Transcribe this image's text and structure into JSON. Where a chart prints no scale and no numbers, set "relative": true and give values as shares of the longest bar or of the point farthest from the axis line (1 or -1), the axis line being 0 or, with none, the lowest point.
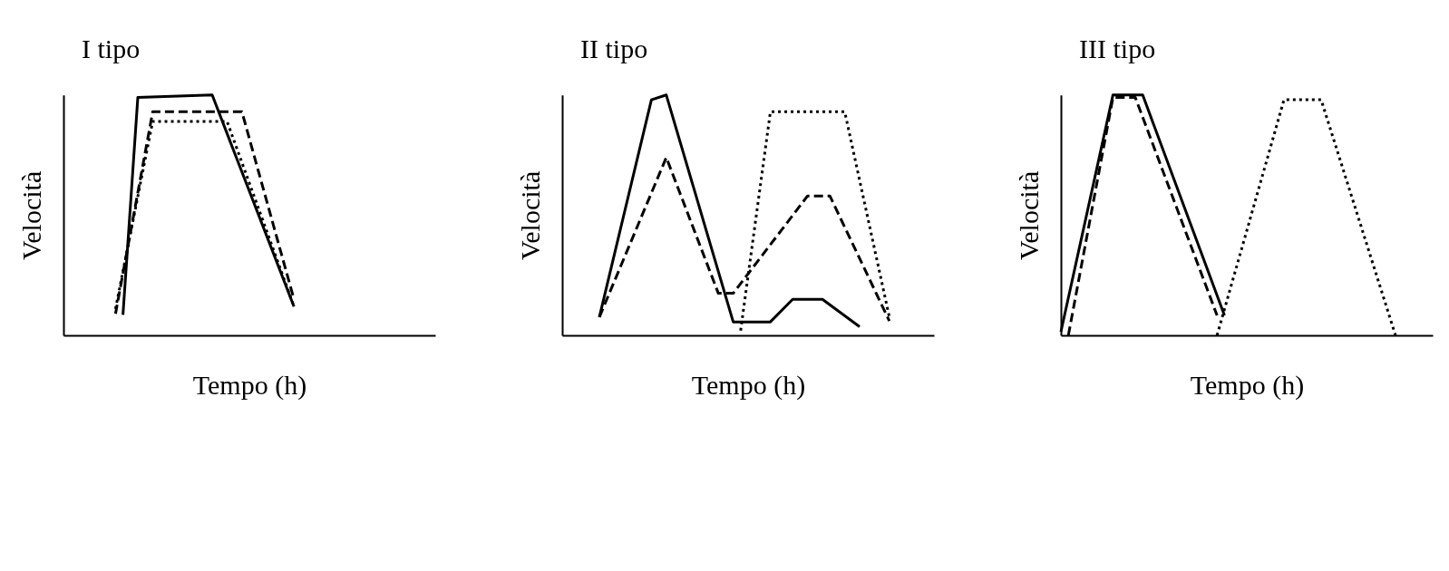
{
  "chart_data": [
    {
      "type": "line",
      "title": "I tipo",
      "xlabel": "Tempo (h)",
      "ylabel": "Velocità",
      "relative": true,
      "tick_labels": false,
      "grid": false,
      "legend": false,
      "marker": "none",
      "categories": [
        null,
        null,
        null,
        null,
        null,
        null,
        null,
        null,
        null,
        null,
        null,
        null,
        null,
        null,
        null,
        null,
        null,
        null,
        null,
        null,
        null,
        null,
        null,
        null,
        null,
        null,
        null,
        null,
        null,
        null,
        null,
        null,
        null,
        null,
        null,
        null,
        null,
        null,
        null,
        null,
        null,
        null,
        null,
        null,
        null,
        null,
        null,
        null,
        null,
        null,
        null
      ],
      "series": [
        {
          "color": "#000000",
          "line_style": "solid",
          "values": [
            null,
            null,
            null,
            null,
            null,
            null,
            null,
            null,
            0.085,
            null,
            0.99,
            null,
            null,
            null,
            null,
            null,
            null,
            null,
            null,
            null,
            1.0,
            null,
            null,
            null,
            null,
            null,
            null,
            null,
            null,
            null,
            null,
            0.12,
            null,
            null,
            null,
            null,
            null,
            null,
            null,
            null,
            null,
            null,
            null,
            null,
            null,
            null,
            null,
            null,
            null,
            null,
            null
          ]
        },
        {
          "color": "#000000",
          "line_style": "dashed",
          "values": [
            null,
            null,
            null,
            null,
            null,
            null,
            null,
            0.09,
            null,
            null,
            null,
            null,
            0.93,
            null,
            null,
            null,
            null,
            null,
            null,
            null,
            null,
            null,
            null,
            null,
            0.93,
            null,
            null,
            null,
            null,
            null,
            null,
            0.15,
            null,
            null,
            null,
            null,
            null,
            null,
            null,
            null,
            null,
            null,
            null,
            null,
            null,
            null,
            null,
            null,
            null,
            null,
            null
          ]
        },
        {
          "color": "#000000",
          "line_style": "dotted",
          "values": [
            null,
            null,
            null,
            null,
            null,
            null,
            null,
            0.11,
            null,
            null,
            null,
            null,
            0.89,
            null,
            null,
            null,
            null,
            null,
            null,
            null,
            null,
            null,
            0.89,
            null,
            null,
            null,
            null,
            null,
            null,
            null,
            null,
            0.12,
            null,
            null,
            null,
            null,
            null,
            null,
            null,
            null,
            null,
            null,
            null,
            null,
            null,
            null,
            null,
            null,
            null,
            null,
            null
          ]
        }
      ]
    },
    {
      "type": "line",
      "title": "II tipo",
      "xlabel": "Tempo (h)",
      "ylabel": "Velocità",
      "relative": true,
      "tick_labels": false,
      "grid": false,
      "legend": false,
      "marker": "none",
      "categories": [
        null,
        null,
        null,
        null,
        null,
        null,
        null,
        null,
        null,
        null,
        null,
        null,
        null,
        null,
        null,
        null,
        null,
        null,
        null,
        null,
        null,
        null,
        null,
        null,
        null,
        null,
        null,
        null,
        null,
        null,
        null,
        null,
        null,
        null,
        null,
        null,
        null,
        null,
        null,
        null,
        null,
        null,
        null,
        null,
        null,
        null,
        null,
        null,
        null,
        null,
        null
      ],
      "series": [
        {
          "color": "#000000",
          "line_style": "solid",
          "values": [
            null,
            null,
            null,
            null,
            null,
            0.076,
            null,
            null,
            null,
            null,
            null,
            null,
            0.98,
            null,
            1.0,
            null,
            null,
            null,
            null,
            null,
            null,
            null,
            null,
            0.056,
            null,
            null,
            null,
            null,
            0.056,
            null,
            null,
            0.15,
            null,
            null,
            null,
            0.15,
            null,
            null,
            null,
            null,
            0.036,
            null,
            null,
            null,
            null,
            null,
            null,
            null,
            null,
            null,
            null
          ]
        },
        {
          "color": "#000000",
          "line_style": "dashed",
          "values": [
            null,
            null,
            null,
            null,
            null,
            0.076,
            null,
            null,
            null,
            null,
            null,
            null,
            null,
            null,
            0.74,
            null,
            null,
            null,
            null,
            null,
            null,
            0.175,
            null,
            0.175,
            null,
            null,
            null,
            null,
            null,
            null,
            null,
            null,
            null,
            0.58,
            null,
            null,
            0.58,
            null,
            null,
            null,
            null,
            null,
            null,
            null,
            0.06,
            null,
            null,
            null,
            null,
            null,
            null
          ]
        },
        {
          "color": "#000000",
          "line_style": "dotted",
          "values": [
            null,
            null,
            null,
            null,
            null,
            null,
            null,
            null,
            null,
            null,
            null,
            null,
            null,
            null,
            null,
            null,
            null,
            null,
            null,
            null,
            null,
            null,
            null,
            null,
            0.02,
            null,
            null,
            null,
            0.93,
            null,
            null,
            null,
            null,
            null,
            null,
            null,
            null,
            null,
            0.93,
            null,
            null,
            null,
            null,
            null,
            0.076,
            null,
            null,
            null,
            null,
            null,
            null
          ]
        }
      ]
    },
    {
      "type": "line",
      "title": "III tipo",
      "xlabel": "Tempo (h)",
      "ylabel": "Velocità",
      "relative": true,
      "tick_labels": false,
      "grid": false,
      "legend": false,
      "marker": "none",
      "categories": [
        null,
        null,
        null,
        null,
        null,
        null,
        null,
        null,
        null,
        null,
        null,
        null,
        null,
        null,
        null,
        null,
        null,
        null,
        null,
        null,
        null,
        null,
        null,
        null,
        null,
        null,
        null,
        null,
        null,
        null,
        null,
        null,
        null,
        null,
        null,
        null,
        null,
        null,
        null,
        null,
        null,
        null,
        null,
        null,
        null,
        null,
        null,
        null,
        null,
        null,
        null
      ],
      "series": [
        {
          "color": "#000000",
          "line_style": "solid",
          "values": [
            0.015,
            null,
            null,
            null,
            null,
            null,
            null,
            1.0,
            null,
            null,
            null,
            1.0,
            null,
            null,
            null,
            null,
            null,
            null,
            null,
            null,
            null,
            null,
            0.083,
            null,
            null,
            null,
            null,
            null,
            null,
            null,
            null,
            null,
            null,
            null,
            null,
            null,
            null,
            null,
            null,
            null,
            null,
            null,
            null,
            null,
            null,
            null,
            null,
            null,
            null,
            null,
            null
          ]
        },
        {
          "color": "#000000",
          "line_style": "dashed",
          "values": [
            null,
            0,
            null,
            null,
            null,
            null,
            null,
            0.99,
            null,
            null,
            0.99,
            null,
            null,
            null,
            null,
            null,
            null,
            null,
            null,
            null,
            null,
            0.083,
            null,
            null,
            null,
            null,
            null,
            null,
            null,
            null,
            null,
            null,
            null,
            null,
            null,
            null,
            null,
            null,
            null,
            null,
            null,
            null,
            null,
            null,
            null,
            null,
            null,
            null,
            null,
            null,
            null
          ]
        },
        {
          "color": "#000000",
          "line_style": "dotted",
          "values": [
            null,
            null,
            null,
            null,
            null,
            null,
            null,
            null,
            null,
            null,
            null,
            null,
            null,
            null,
            null,
            null,
            null,
            null,
            null,
            null,
            null,
            0,
            null,
            null,
            null,
            null,
            null,
            null,
            null,
            null,
            0.98,
            null,
            null,
            null,
            null,
            0.98,
            null,
            null,
            null,
            null,
            null,
            null,
            null,
            null,
            null,
            0,
            null,
            null,
            null,
            null,
            null
          ]
        }
      ]
    }
  ]
}
